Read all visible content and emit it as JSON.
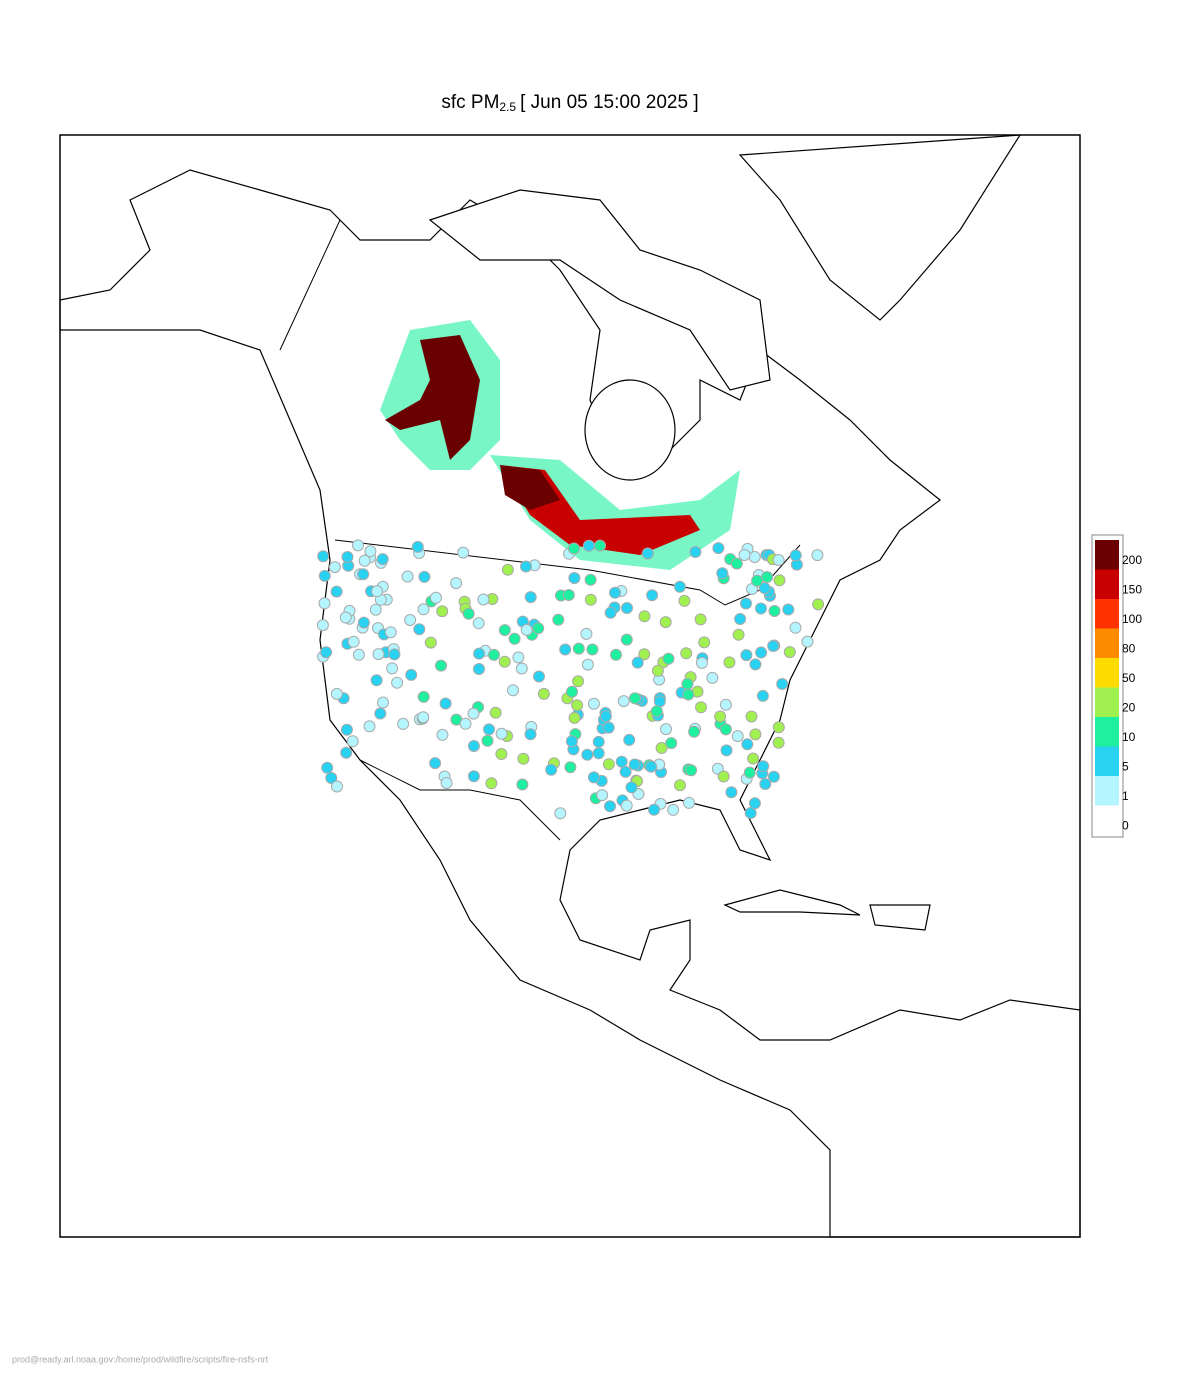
{
  "title": {
    "prefix": "sfc PM",
    "subscript": "2.5",
    "suffix": "[ Jun 05 15:00 2025 ]"
  },
  "legend": {
    "bins": [
      {
        "label": "200",
        "color": "#6b0000"
      },
      {
        "label": "150",
        "color": "#c80000"
      },
      {
        "label": "100",
        "color": "#ff3200"
      },
      {
        "label": "80",
        "color": "#ff8c00"
      },
      {
        "label": "50",
        "color": "#ffdc00"
      },
      {
        "label": "20",
        "color": "#a0f050"
      },
      {
        "label": "10",
        "color": "#1ef0a0"
      },
      {
        "label": "5",
        "color": "#28d2f0"
      },
      {
        "label": "1",
        "color": "#b4f5ff"
      },
      {
        "label": "0",
        "color": "#ffffff"
      }
    ]
  },
  "footer": "prod@ready.arl.noaa.gov:/home/prod/wildfire/scripts/fire-nsfs-nrt"
}
